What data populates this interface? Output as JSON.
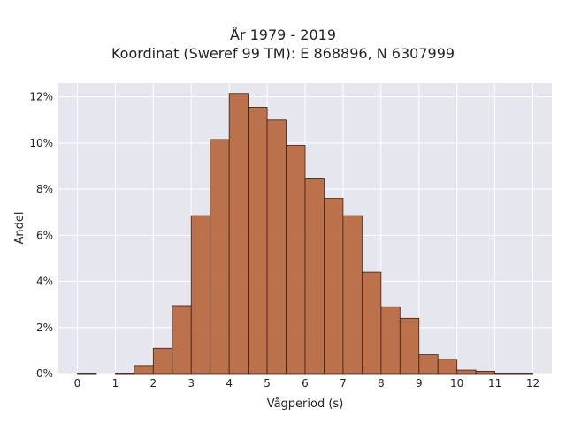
{
  "chart_data": {
    "type": "bar",
    "title_lines": [
      "År 1979 - 2019",
      "Koordinat (Sweref 99 TM): E 868896, N 6307999"
    ],
    "xlabel": "Vågperiod (s)",
    "ylabel": "Andel",
    "xlim": [
      -0.5,
      12.5
    ],
    "ylim": [
      0,
      12.6
    ],
    "x_ticks": [
      0,
      1,
      2,
      3,
      4,
      5,
      6,
      7,
      8,
      9,
      10,
      11,
      12
    ],
    "x_tick_labels": [
      "0",
      "1",
      "2",
      "3",
      "4",
      "5",
      "6",
      "7",
      "8",
      "9",
      "10",
      "11",
      "12"
    ],
    "y_ticks": [
      0,
      2,
      4,
      6,
      8,
      10,
      12
    ],
    "y_tick_labels": [
      "0%",
      "2%",
      "4%",
      "6%",
      "8%",
      "10%",
      "12%"
    ],
    "grid": true,
    "bar_color": "#b5643a",
    "edge_color": "#3a2218",
    "bin_width": 0.5,
    "bins": [
      {
        "x0": 0.0,
        "value": 0.02
      },
      {
        "x0": 1.0,
        "value": 0.02
      },
      {
        "x0": 1.5,
        "value": 0.35
      },
      {
        "x0": 2.0,
        "value": 1.1
      },
      {
        "x0": 2.5,
        "value": 2.95
      },
      {
        "x0": 3.0,
        "value": 6.85
      },
      {
        "x0": 3.5,
        "value": 10.15
      },
      {
        "x0": 4.0,
        "value": 12.15
      },
      {
        "x0": 4.5,
        "value": 11.55
      },
      {
        "x0": 5.0,
        "value": 11.0
      },
      {
        "x0": 5.5,
        "value": 9.9
      },
      {
        "x0": 6.0,
        "value": 8.45
      },
      {
        "x0": 6.5,
        "value": 7.6
      },
      {
        "x0": 7.0,
        "value": 6.85
      },
      {
        "x0": 7.5,
        "value": 4.4
      },
      {
        "x0": 8.0,
        "value": 2.9
      },
      {
        "x0": 8.5,
        "value": 2.4
      },
      {
        "x0": 9.0,
        "value": 0.82
      },
      {
        "x0": 9.5,
        "value": 0.62
      },
      {
        "x0": 10.0,
        "value": 0.15
      },
      {
        "x0": 10.5,
        "value": 0.1
      },
      {
        "x0": 11.0,
        "value": 0.02
      },
      {
        "x0": 11.5,
        "value": 0.02
      }
    ]
  }
}
